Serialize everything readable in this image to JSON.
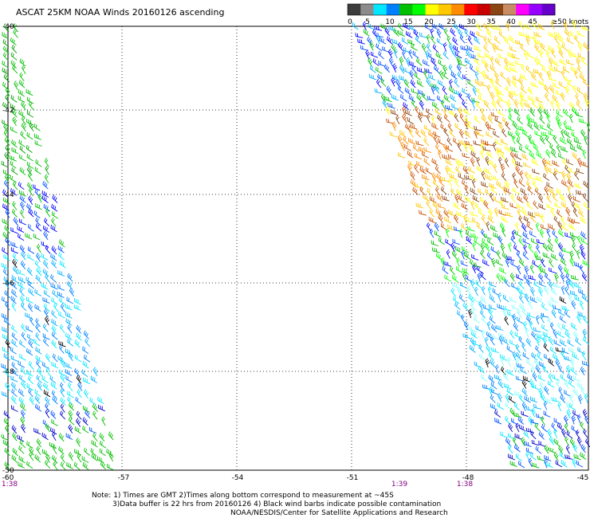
{
  "title": "ASCAT 25KM NOAA Winds 20160126 ascending",
  "legend": {
    "labels": [
      "0",
      "5",
      "10",
      "15",
      "20",
      "25",
      "30",
      "35",
      "40",
      "45",
      "≥50 knots"
    ],
    "colors": [
      "#3c3c3c",
      "#8c8c8c",
      "#00e8ff",
      "#0080ff",
      "#00c000",
      "#00ff00",
      "#ffff00",
      "#ffc800",
      "#ff8c00",
      "#ff0000",
      "#c80000",
      "#8b4513",
      "#c88c64",
      "#ff00ff",
      "#9600ff",
      "#6400c8"
    ]
  },
  "map": {
    "lon_ticks": [
      "-60",
      "-57",
      "-54",
      "-51",
      "-48",
      "-45"
    ],
    "lat_ticks": [
      "-40",
      "-42",
      "-44",
      "-46",
      "-48",
      "-50"
    ],
    "time_labels": [
      "1:38",
      "1:39",
      "1:38"
    ]
  },
  "notes": {
    "line1": "Note: 1) Times are GMT 2)Times along bottom correspond to measurement at ~45S",
    "line2": "3)Data buffer is 22 hrs from 20160126 4) Black wind barbs indicate possible contamination",
    "line3": "NOAA/NESDIS/Center for Satellite Applications and Research"
  }
}
